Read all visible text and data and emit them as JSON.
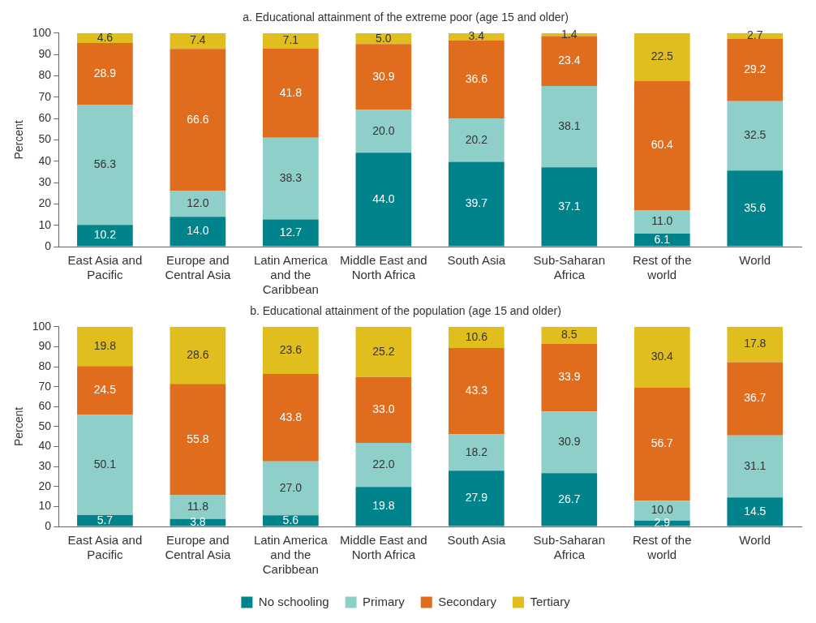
{
  "chart_data": [
    {
      "type": "bar",
      "title": "a. Educational attainment of the extreme poor (age 15 and older)",
      "ylabel": "Percent",
      "stacked": true,
      "categories": [
        "East Asia and Pacific",
        "Europe and Central Asia",
        "Latin America and the Caribbean",
        "Middle East and North Africa",
        "South Asia",
        "Sub-Saharan Africa",
        "Rest of the world",
        "World"
      ],
      "ylim": [
        0,
        100
      ],
      "yticks": [
        0,
        10,
        20,
        30,
        40,
        50,
        60,
        70,
        80,
        90,
        100
      ],
      "grid": false,
      "legend": false,
      "series": [
        {
          "color": "#00838a",
          "values": [
            10.2,
            14.0,
            12.7,
            44.0,
            39.7,
            37.1,
            6.1,
            35.6
          ],
          "value_labels": [
            "10.2",
            "14.0",
            "12.7",
            "44.0",
            "39.7",
            "37.1",
            "6.1",
            "35.6"
          ]
        },
        {
          "color": "#8fcfca",
          "values": [
            56.3,
            12.0,
            38.3,
            20.0,
            20.2,
            38.1,
            11.0,
            32.5
          ],
          "value_labels": [
            "56.3",
            "12.0",
            "38.3",
            "20.0",
            "20.2",
            "38.1",
            "11.0",
            "32.5"
          ]
        },
        {
          "color": "#e06d1e",
          "values": [
            28.9,
            66.6,
            41.8,
            30.9,
            36.6,
            23.4,
            60.4,
            29.2
          ],
          "value_labels": [
            "28.9",
            "66.6",
            "41.8",
            "30.9",
            "36.6",
            "23.4",
            "60.4",
            "29.2"
          ]
        },
        {
          "color": "#e0be1e",
          "values": [
            4.6,
            7.4,
            7.1,
            5.0,
            3.4,
            1.4,
            22.5,
            2.7
          ],
          "value_labels": [
            "4.6",
            "7.4",
            "7.1",
            "5.0",
            "3.4",
            "1.4",
            "22.5",
            "2.7"
          ]
        }
      ]
    },
    {
      "type": "bar",
      "title": "b. Educational attainment of the population (age 15 and older)",
      "ylabel": "Percent",
      "stacked": true,
      "categories": [
        "East Asia and Pacific",
        "Europe and Central Asia",
        "Latin America and the Caribbean",
        "Middle East and North Africa",
        "South Asia",
        "Sub-Saharan Africa",
        "Rest of the world",
        "World"
      ],
      "ylim": [
        0,
        100
      ],
      "yticks": [
        0,
        10,
        20,
        30,
        40,
        50,
        60,
        70,
        80,
        90,
        100
      ],
      "grid": false,
      "legend": "bottom",
      "series": [
        {
          "name": "No schooling",
          "color": "#00838a",
          "values": [
            5.7,
            3.8,
            5.6,
            19.8,
            27.9,
            26.7,
            2.9,
            14.5
          ],
          "value_labels": [
            "5.7",
            "3.8",
            "5.6",
            "19.8",
            "27.9",
            "26.7",
            "2.9",
            "14.5"
          ]
        },
        {
          "name": "Primary",
          "color": "#8fcfca",
          "values": [
            50.1,
            11.8,
            27.0,
            22.0,
            18.2,
            30.9,
            10.0,
            31.1
          ],
          "value_labels": [
            "50.1",
            "11.8",
            "27.0",
            "22.0",
            "18.2",
            "30.9",
            "10.0",
            "31.1"
          ]
        },
        {
          "name": "Secondary",
          "color": "#e06d1e",
          "values": [
            24.5,
            55.8,
            43.8,
            33.0,
            43.3,
            33.9,
            56.7,
            36.7
          ],
          "value_labels": [
            "24.5",
            "55.8",
            "43.8",
            "33.0",
            "43.3",
            "33.9",
            "56.7",
            "36.7"
          ]
        },
        {
          "name": "Tertiary",
          "color": "#e0be1e",
          "values": [
            19.8,
            28.6,
            23.6,
            25.2,
            10.6,
            8.5,
            30.4,
            17.8
          ],
          "value_labels": [
            "19.8",
            "28.6",
            "23.6",
            "25.2",
            "10.6",
            "8.5",
            "30.4",
            "17.8"
          ]
        }
      ]
    }
  ]
}
